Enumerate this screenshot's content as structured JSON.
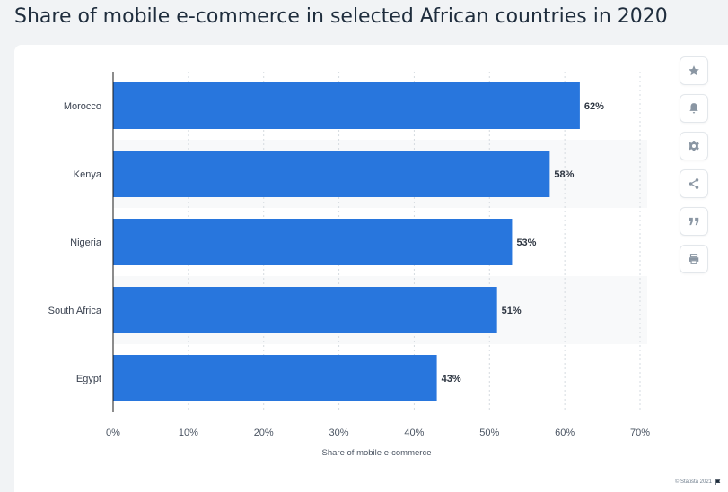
{
  "header": {
    "title": "Share of mobile e-commerce in selected African countries in 2020"
  },
  "sidebar": {
    "items": [
      {
        "icon": "star-icon"
      },
      {
        "icon": "bell-icon"
      },
      {
        "icon": "gear-icon"
      },
      {
        "icon": "share-icon"
      },
      {
        "icon": "quote-icon"
      },
      {
        "icon": "print-icon"
      }
    ]
  },
  "footer": {
    "credit": "© Statista 2021"
  },
  "colors": {
    "bar": "#2876dd",
    "stripe": "#f8f9fa",
    "axis": "#1a1a1a"
  },
  "chart_data": {
    "type": "bar",
    "orientation": "horizontal",
    "categories": [
      "Morocco",
      "Kenya",
      "Nigeria",
      "South Africa",
      "Egypt"
    ],
    "values": [
      62,
      58,
      53,
      51,
      43
    ],
    "value_labels": [
      "62%",
      "58%",
      "53%",
      "51%",
      "43%"
    ],
    "xlabel": "Share of mobile e-commerce",
    "xlim": [
      0,
      70
    ],
    "x_ticks": [
      0,
      10,
      20,
      30,
      40,
      50,
      60,
      70
    ],
    "x_tick_labels": [
      "0%",
      "10%",
      "20%",
      "30%",
      "40%",
      "50%",
      "60%",
      "70%"
    ],
    "grid": "vertical dashed",
    "legend": "none"
  }
}
